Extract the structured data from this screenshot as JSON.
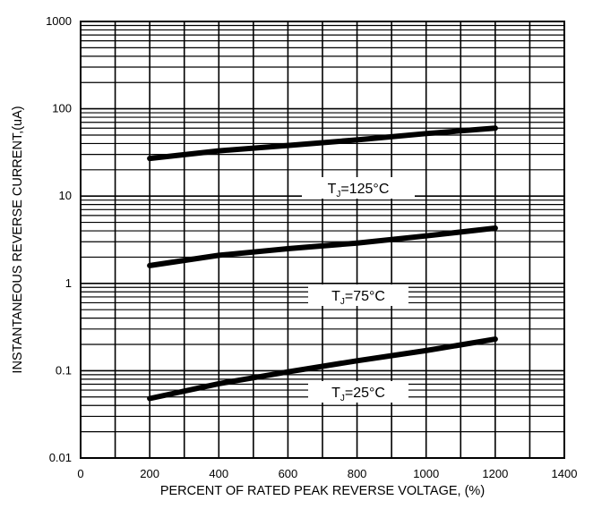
{
  "chart_data": {
    "type": "line",
    "title": "",
    "xlabel": "PERCENT OF RATED PEAK REVERSE VOLTAGE, (%)",
    "ylabel": "INSTANTANEOUS REVERSE CURRENT,(uA)",
    "xlim": [
      0,
      1400
    ],
    "ylim": [
      0.01,
      1000
    ],
    "yscale": "log",
    "grid": true,
    "x_ticks": [
      0,
      200,
      400,
      600,
      800,
      1000,
      1200,
      1400
    ],
    "x_tick_labels": [
      "0",
      "200",
      "400",
      "600",
      "800",
      "1000",
      "1200",
      "1400"
    ],
    "y_ticks": [
      0.01,
      0.1,
      1,
      10,
      100,
      1000
    ],
    "y_tick_labels": [
      "0.01",
      "0.1",
      "1",
      "10",
      "100",
      "1000"
    ],
    "series": [
      {
        "name": "TJ=125°C",
        "label_main": "T",
        "label_sub": "J",
        "label_rest": "=125°C",
        "x": [
          200,
          400,
          600,
          800,
          1000,
          1200
        ],
        "y": [
          27,
          33,
          38,
          44,
          52,
          60
        ]
      },
      {
        "name": "TJ=75°C",
        "label_main": "T",
        "label_sub": "J",
        "label_rest": "=75°C",
        "x": [
          200,
          400,
          600,
          800,
          1000,
          1200
        ],
        "y": [
          1.6,
          2.1,
          2.5,
          2.9,
          3.5,
          4.3
        ]
      },
      {
        "name": "TJ=25°C",
        "label_main": "T",
        "label_sub": "J",
        "label_rest": "=25°C",
        "x": [
          200,
          400,
          600,
          800,
          1000,
          1200
        ],
        "y": [
          0.048,
          0.071,
          0.097,
          0.13,
          0.17,
          0.23
        ]
      }
    ],
    "line_color": "#000000"
  }
}
